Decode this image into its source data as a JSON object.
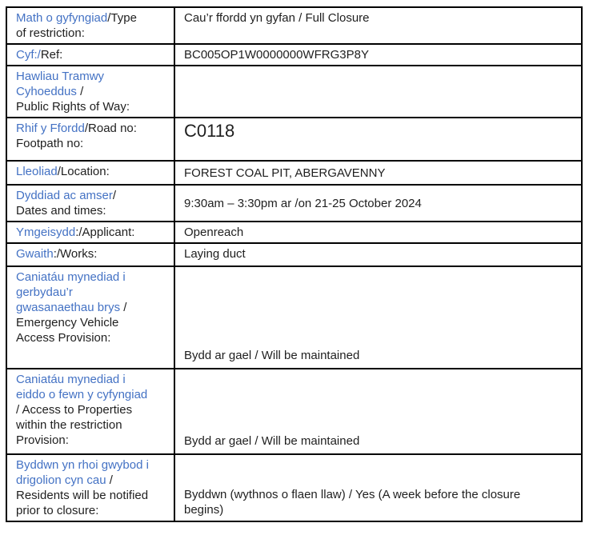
{
  "colors": {
    "label_blue": "#4472C4",
    "text_black": "#1F1F1F",
    "border_black": "#000000"
  },
  "table": {
    "rows": [
      {
        "label_cy": "Math o gyfyngiad",
        "label_en": "/Type\nof restriction:",
        "value": "Cau’r ffordd yn gyfan / Full Closure"
      },
      {
        "label_cy": "Cyf:/",
        "label_en": "Ref:",
        "value": "BC005OP1W0000000WFRG3P8Y"
      },
      {
        "label_cy": "Hawliau Tramwy\nCyhoeddus ",
        "label_en": "/\nPublic Rights of Way:",
        "value": ""
      },
      {
        "label_cy": "Rhif y Ffordd",
        "label_en": "/Road no:\nFootpath no:",
        "value": "C0118"
      },
      {
        "label_cy": "Lleoliad",
        "label_en": "/Location:",
        "value": "FOREST COAL PIT, ABERGAVENNY"
      },
      {
        "label_cy": "Dyddiad ac amser",
        "label_en": "/\nDates and times:",
        "value": "9:30am – 3:30pm ar /on 21-25 October 2024"
      },
      {
        "label_cy": "Ymgeisydd",
        "label_en": ":/Applicant:",
        "value": "Openreach"
      },
      {
        "label_cy": "Gwaith",
        "label_en": ":/Works:",
        "value": "Laying duct"
      },
      {
        "label_cy": "Caniatáu mynediad i\ngerbydau’r\ngwasanaethau brys ",
        "label_en": "/\nEmergency Vehicle\nAccess Provision:",
        "value": "Bydd ar gael / Will be maintained"
      },
      {
        "label_cy": "Caniatáu mynediad i\neiddo o fewn y cyfyngiad",
        "label_en": "\n/ Access to Properties\nwithin the restriction\nProvision:",
        "value": "Bydd ar gael / Will be maintained"
      },
      {
        "label_cy": "Byddwn yn rhoi gwybod i\ndrigolion cyn cau ",
        "label_en": "/\nResidents will be notified\nprior to closure:",
        "value": "Byddwn (wythnos o flaen llaw) / Yes (A week before the closure\nbegins)"
      }
    ]
  }
}
